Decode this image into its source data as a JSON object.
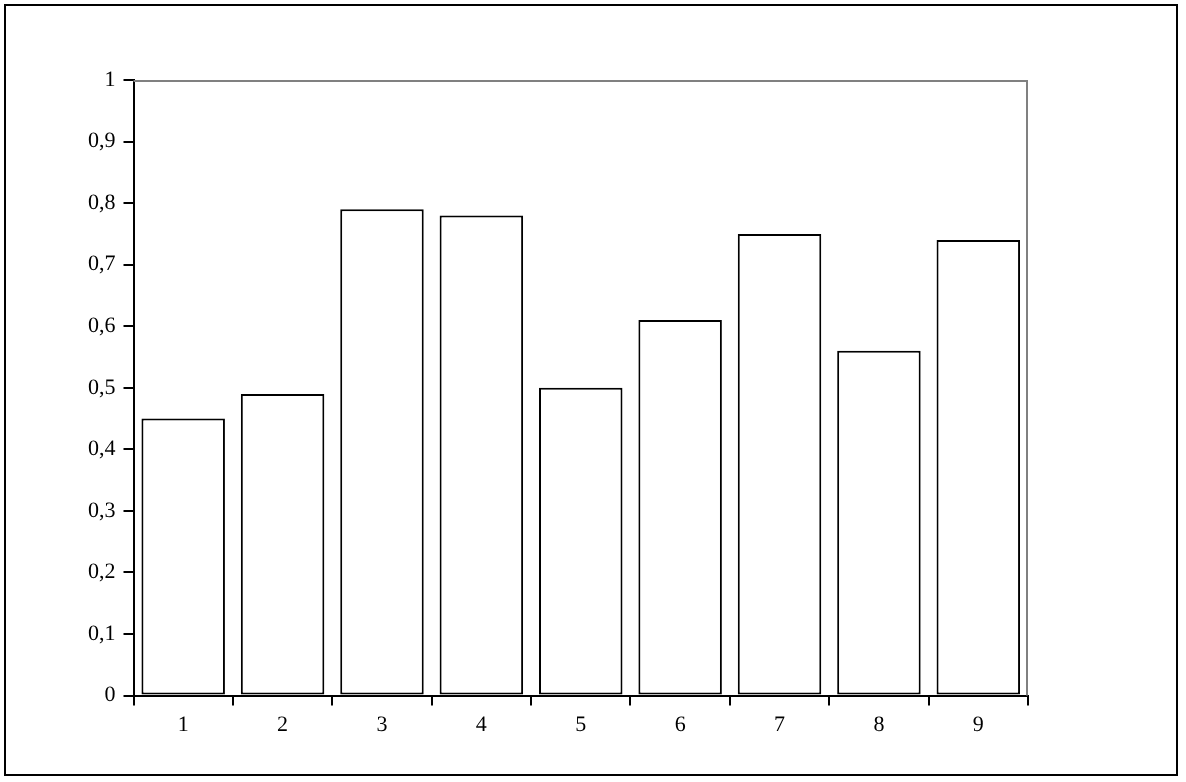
{
  "chart_data": {
    "type": "bar",
    "categories": [
      "1",
      "2",
      "3",
      "4",
      "5",
      "6",
      "7",
      "8",
      "9"
    ],
    "values": [
      0.45,
      0.49,
      0.79,
      0.78,
      0.5,
      0.61,
      0.75,
      0.56,
      0.74
    ],
    "color": "#ffffff",
    "ylim": [
      0,
      1
    ],
    "yticks": [
      0,
      {
        "value": 0.1,
        "label": "0,1"
      },
      {
        "value": 0.2,
        "label": "0,2"
      },
      {
        "value": 0.3,
        "label": "0,3"
      },
      {
        "value": 0.4,
        "label": "0,4"
      },
      {
        "value": 0.5,
        "label": "0,5"
      },
      {
        "value": 0.6,
        "label": "0,6"
      },
      {
        "value": 0.7,
        "label": "0,7"
      },
      {
        "value": 0.8,
        "label": "0,8"
      },
      {
        "value": 0.9,
        "label": "0,9"
      },
      1
    ],
    "legend": false,
    "grid": false
  }
}
